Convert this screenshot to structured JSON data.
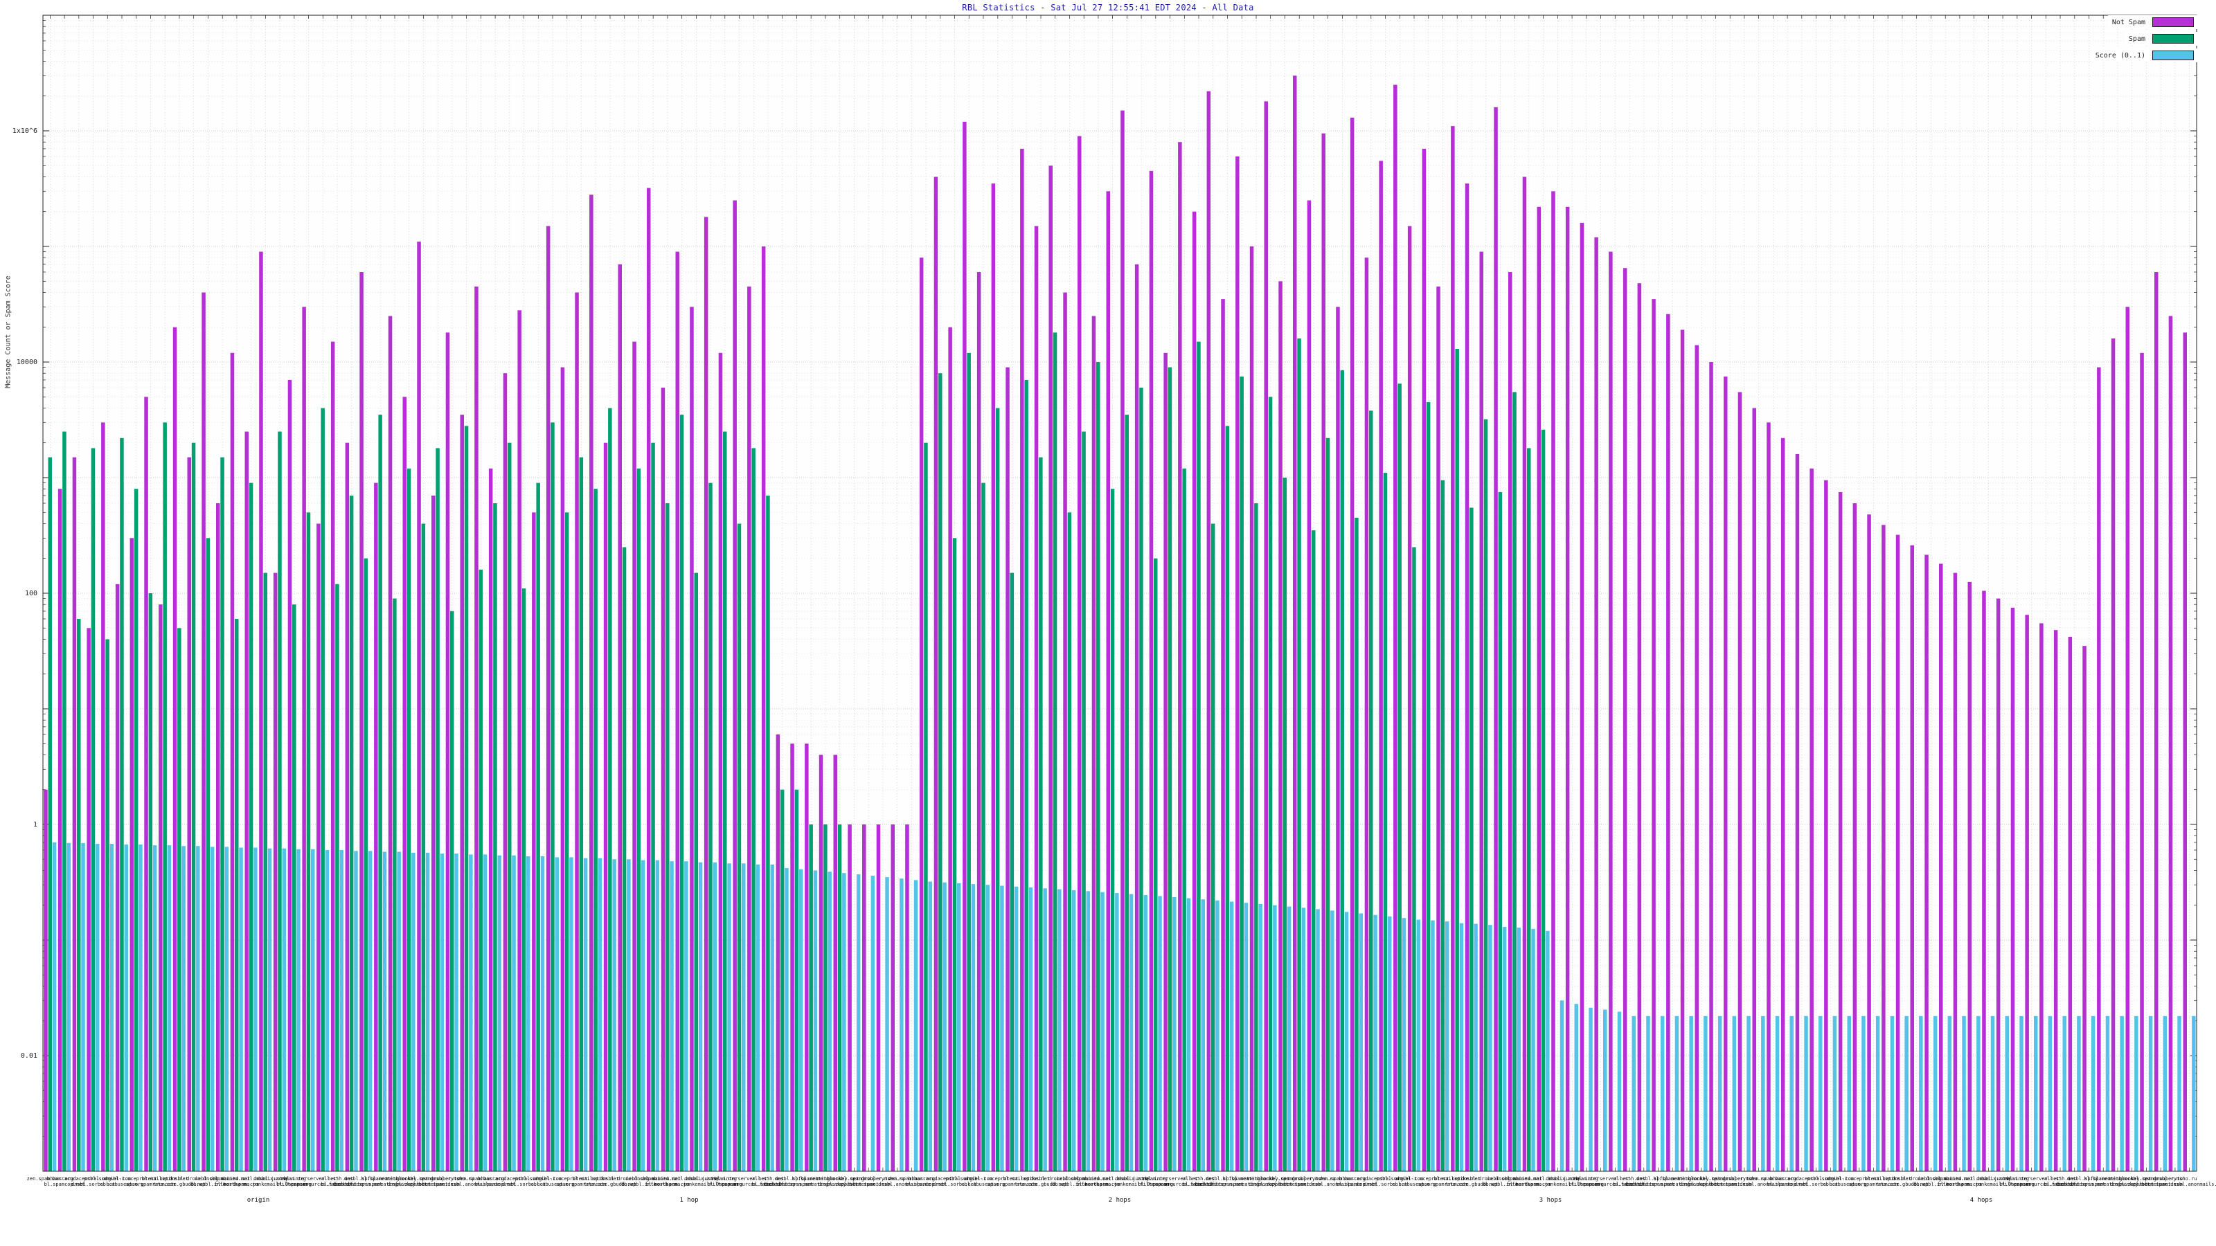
{
  "chart_data": {
    "type": "bar",
    "title": "RBL Statistics - Sat Jul 27 12:55:41 EDT 2024 - All Data",
    "ylabel": "Message Count or Spam Score",
    "y_scale": "log",
    "ylim": [
      0.001,
      10000000
    ],
    "yticks": [
      {
        "label": "1x10^6",
        "value": 1000000
      },
      {
        "label": "10000",
        "value": 10000
      },
      {
        "label": "100",
        "value": 100
      },
      {
        "label": "1",
        "value": 1
      },
      {
        "label": "0.01",
        "value": 0.01
      }
    ],
    "legend_position": "top-right",
    "grid": true,
    "colors": {
      "not_spam": "#b62fd5",
      "spam": "#00a070",
      "score": "#55c3e8",
      "grid": "#cccccc",
      "grid_minor": "#e3e3e3",
      "axis": "#222222",
      "title": "#1a1aa6"
    },
    "x_axis": {
      "slots": 150,
      "names": [
        "zen.spamhaus.org",
        "bl.spamcop.net",
        "b.barracudacentral.org",
        "dnsbl.sorbs.net",
        "psbl.surriel.com",
        "cbl.abuseat.org",
        "dnsbl-1.uceprotect.net",
        "spam.spamrats.com",
        "bl.mailspike.net",
        "truncate.gbudb.net",
        "dnsbl.dronebl.org",
        "db.wpbl.info",
        "ix.dnsbl.manitu.net",
        "bl.nordspam.com",
        "combined.mail.abusix.zone",
        "hostkarma.junkemailfilter.com",
        "dnsbl.justspam.org",
        "bl.0spam.org",
        "rbl.interserver.net",
        "spamsources.fabel.dk",
        "all.s5h.net",
        "bl.scientificspam.net",
        "dnsbl.spfbl.net",
        "backscatter.spameatingmonkey.net",
        "bl.spameatingmonkey.net",
        "dnsbl.zapbl.net",
        "netblockbl.spamgrouper.to",
        "rbl.metunet.com",
        "dnsbl.rymsho.ru",
        "spam.dnsbl.anonmails.de"
      ],
      "groups": [
        "origin",
        "1 hop",
        "2 hops",
        "3 hops",
        "4 hops"
      ]
    },
    "series": [
      {
        "key": "not_spam",
        "name": "Not Spam",
        "color": "#b62fd5",
        "values": [
          2,
          800,
          1500,
          50,
          3000,
          120,
          300,
          5000,
          80,
          20000,
          1500,
          40000,
          600,
          12000,
          2500,
          90000,
          150,
          7000,
          30000,
          400,
          15000,
          2000,
          60000,
          900,
          25000,
          5000,
          110000,
          700,
          18000,
          3500,
          45000,
          1200,
          8000,
          28000,
          500,
          150000,
          9000,
          40000,
          280000,
          2000,
          70000,
          15000,
          320000,
          6000,
          90000,
          30000,
          180000,
          12000,
          250000,
          45000,
          100000,
          6,
          5,
          5,
          4,
          4,
          1,
          1,
          1,
          1,
          1,
          80000,
          400000,
          20000,
          1200000,
          60000,
          350000,
          9000,
          700000,
          150000,
          500000,
          40000,
          900000,
          25000,
          300000,
          1500000,
          70000,
          450000,
          12000,
          800000,
          200000,
          2200000,
          35000,
          600000,
          100000,
          1800000,
          50000,
          3000000,
          250000,
          950000,
          30000,
          1300000,
          80000,
          550000,
          2500000,
          150000,
          700000,
          45000,
          1100000,
          350000,
          90000,
          1600000,
          60000,
          400000,
          220000,
          300000,
          220000,
          160000,
          120000,
          90000,
          65000,
          48000,
          35000,
          26000,
          19000,
          14000,
          10000,
          7500,
          5500,
          4000,
          3000,
          2200,
          1600,
          1200,
          950,
          750,
          600,
          480,
          390,
          320,
          260,
          215,
          180,
          150,
          125,
          105,
          90,
          75,
          65,
          55,
          48,
          42,
          35,
          9000,
          16000,
          30000,
          12000,
          60000,
          25000,
          18000
        ]
      },
      {
        "key": "spam",
        "name": "Spam",
        "color": "#00a070",
        "values": [
          1500,
          2500,
          60,
          1800,
          40,
          2200,
          800,
          100,
          3000,
          50,
          2000,
          300,
          1500,
          60,
          900,
          150,
          2500,
          80,
          500,
          4000,
          120,
          700,
          200,
          3500,
          90,
          1200,
          400,
          1800,
          70,
          2800,
          160,
          600,
          2000,
          110,
          900,
          3000,
          500,
          1500,
          800,
          4000,
          250,
          1200,
          2000,
          600,
          3500,
          150,
          900,
          2500,
          400,
          1800,
          700,
          2,
          2,
          1,
          1,
          1,
          0,
          0,
          0,
          0,
          0,
          2000,
          8000,
          300,
          12000,
          900,
          4000,
          150,
          7000,
          1500,
          18000,
          500,
          2500,
          10000,
          800,
          3500,
          6000,
          200,
          9000,
          1200,
          15000,
          400,
          2800,
          7500,
          600,
          5000,
          1000,
          16000,
          350,
          2200,
          8500,
          450,
          3800,
          1100,
          6500,
          250,
          4500,
          950,
          13000,
          550,
          3200,
          750,
          5500,
          1800,
          2600,
          0,
          0,
          0,
          0,
          0,
          0,
          0,
          0,
          0,
          0,
          0,
          0,
          0,
          0,
          0,
          0,
          0,
          0,
          0,
          0,
          0,
          0,
          0,
          0,
          0,
          0,
          0,
          0,
          0,
          0,
          0,
          0,
          0,
          0,
          0,
          0,
          0,
          0,
          0,
          0,
          0,
          0,
          0,
          0,
          0
        ]
      },
      {
        "key": "score",
        "name": "Score (0..1)",
        "color": "#55c3e8",
        "values": [
          0.7,
          0.69,
          0.69,
          0.68,
          0.68,
          0.67,
          0.67,
          0.66,
          0.66,
          0.65,
          0.65,
          0.64,
          0.64,
          0.63,
          0.63,
          0.62,
          0.62,
          0.61,
          0.61,
          0.6,
          0.6,
          0.59,
          0.59,
          0.58,
          0.58,
          0.57,
          0.57,
          0.56,
          0.56,
          0.55,
          0.55,
          0.54,
          0.54,
          0.53,
          0.53,
          0.52,
          0.52,
          0.51,
          0.51,
          0.5,
          0.5,
          0.49,
          0.49,
          0.48,
          0.48,
          0.47,
          0.47,
          0.46,
          0.46,
          0.45,
          0.45,
          0.42,
          0.41,
          0.4,
          0.39,
          0.38,
          0.37,
          0.36,
          0.35,
          0.34,
          0.33,
          0.32,
          0.315,
          0.31,
          0.305,
          0.3,
          0.295,
          0.29,
          0.285,
          0.28,
          0.275,
          0.27,
          0.265,
          0.26,
          0.255,
          0.25,
          0.245,
          0.24,
          0.235,
          0.23,
          0.225,
          0.22,
          0.215,
          0.21,
          0.205,
          0.2,
          0.195,
          0.19,
          0.185,
          0.18,
          0.175,
          0.17,
          0.165,
          0.16,
          0.155,
          0.15,
          0.148,
          0.145,
          0.14,
          0.138,
          0.135,
          0.13,
          0.128,
          0.125,
          0.12,
          0.03,
          0.028,
          0.026,
          0.025,
          0.024,
          0.022,
          0.022,
          0.022,
          0.022,
          0.022,
          0.022,
          0.022,
          0.022,
          0.022,
          0.022,
          0.022,
          0.022,
          0.022,
          0.022,
          0.022,
          0.022,
          0.022,
          0.022,
          0.022,
          0.022,
          0.022,
          0.022,
          0.022,
          0.022,
          0.022,
          0.022,
          0.022,
          0.022,
          0.022,
          0.022,
          0.022,
          0.022,
          0.022,
          0.022,
          0.022,
          0.022,
          0.022,
          0.022,
          0.022,
          0.022
        ]
      }
    ]
  }
}
